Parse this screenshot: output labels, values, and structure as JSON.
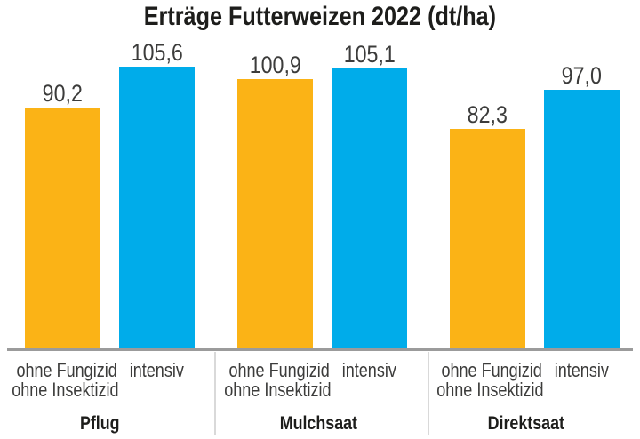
{
  "chart_data": {
    "type": "bar",
    "title": "Erträge Futterweizen 2022 (dt/ha)",
    "unit": "dt/ha",
    "categories": [
      "Pflug",
      "Mulchsaat",
      "Direktsaat"
    ],
    "series": [
      {
        "name": "ohne Fungizid ohne Insektizid",
        "color": "#FBB316",
        "values": [
          90.2,
          100.9,
          82.3
        ],
        "value_labels": [
          "90,2",
          "100,9",
          "82,3"
        ]
      },
      {
        "name": "intensiv",
        "color": "#00ACEA",
        "values": [
          105.6,
          105.1,
          97.0
        ],
        "value_labels": [
          "105,6",
          "105,1",
          "97,0"
        ]
      }
    ],
    "bar_label_line1": "ohne Fungizid",
    "bar_label_line2": "ohne Insektizid",
    "bar_label_intensiv": "intensiv",
    "ylim": [
      0,
      120
    ],
    "grid": false,
    "legend": "none",
    "colors": {
      "title_text": "#1d1d1b",
      "label_text": "#3c3c3b",
      "baseline": "#9b9b9b",
      "divider": "#d9d9d9",
      "background": "#ffffff"
    }
  }
}
